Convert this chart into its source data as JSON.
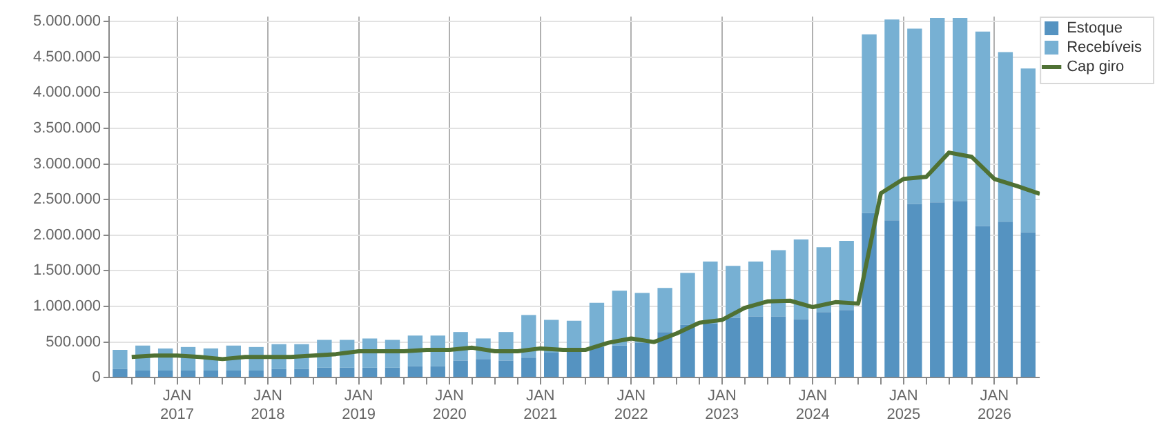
{
  "chart_data": {
    "type": "bar",
    "stacked": true,
    "grid": true,
    "legend": "right",
    "marker": "none",
    "x": [
      "2016-05-15",
      "2016-08-15",
      "2016-11-15",
      "2017-02-15",
      "2017-05-15",
      "2017-08-15",
      "2017-11-15",
      "2018-02-15",
      "2018-05-15",
      "2018-08-15",
      "2018-11-15",
      "2019-02-15",
      "2019-05-15",
      "2019-08-15",
      "2019-11-15",
      "2020-02-15",
      "2020-05-15",
      "2020-08-15",
      "2020-11-15",
      "2021-02-15",
      "2021-05-15",
      "2021-08-15",
      "2021-11-15",
      "2022-02-15",
      "2022-05-15",
      "2022-08-15",
      "2022-11-15",
      "2023-02-15",
      "2023-05-15",
      "2023-08-15",
      "2023-11-15",
      "2024-02-15",
      "2024-05-15",
      "2024-08-15",
      "2024-11-15",
      "2025-02-15",
      "2025-05-15",
      "2025-08-15",
      "2025-11-15",
      "2026-02-15",
      "2026-05-15"
    ],
    "series": [
      {
        "name": "Estoque",
        "color": "#5593c1",
        "values": [
          120000,
          100000,
          100000,
          100000,
          100000,
          100000,
          100000,
          120000,
          120000,
          140000,
          140000,
          140000,
          140000,
          160000,
          160000,
          240000,
          260000,
          240000,
          280000,
          350000,
          370000,
          430000,
          450000,
          490000,
          640000,
          740000,
          760000,
          840000,
          860000,
          860000,
          820000,
          920000,
          950000,
          2310000,
          2210000,
          2440000,
          2460000,
          2480000,
          2130000,
          2190000,
          2040000
        ]
      },
      {
        "name": "Recebíveis",
        "color": "#77b0d3",
        "values": [
          270000,
          350000,
          310000,
          330000,
          310000,
          350000,
          330000,
          350000,
          350000,
          390000,
          390000,
          410000,
          390000,
          430000,
          430000,
          400000,
          290000,
          400000,
          600000,
          460000,
          430000,
          620000,
          770000,
          700000,
          620000,
          730000,
          870000,
          730000,
          770000,
          930000,
          1120000,
          910000,
          970000,
          2510000,
          2820000,
          2460000,
          2590000,
          2570000,
          2730000,
          2380000,
          2300000
        ]
      },
      {
        "name": "Cap giro",
        "type": "line",
        "color": "#4f7134",
        "x": [
          "2016-07",
          "2016-10",
          "2017-01",
          "2017-04",
          "2017-07",
          "2017-10",
          "2018-01",
          "2018-04",
          "2018-07",
          "2018-10",
          "2019-01",
          "2019-04",
          "2019-07",
          "2019-10",
          "2020-01",
          "2020-04",
          "2020-07",
          "2020-10",
          "2021-01",
          "2021-04",
          "2021-07",
          "2021-10",
          "2022-01",
          "2022-04",
          "2022-07",
          "2022-10",
          "2023-01",
          "2023-04",
          "2023-07",
          "2023-10",
          "2024-01",
          "2024-04",
          "2024-07",
          "2024-10",
          "2025-01",
          "2025-04",
          "2025-07",
          "2025-10",
          "2026-01",
          "2026-04",
          "2026-07"
        ],
        "values": [
          290000,
          310000,
          310000,
          290000,
          260000,
          290000,
          290000,
          290000,
          310000,
          330000,
          370000,
          370000,
          370000,
          390000,
          390000,
          420000,
          370000,
          370000,
          410000,
          390000,
          390000,
          490000,
          550000,
          500000,
          620000,
          770000,
          810000,
          980000,
          1070000,
          1080000,
          990000,
          1060000,
          1040000,
          2590000,
          2790000,
          2820000,
          3160000,
          3100000,
          2790000,
          2690000,
          2580000
        ]
      }
    ],
    "xlim": [
      "2016-04",
      "2026-07"
    ],
    "xticks": [
      {
        "value": "2016-07",
        "label": null
      },
      {
        "value": "2016-10",
        "label": null
      },
      {
        "value": "2017-01",
        "label": "JAN\n2017"
      },
      {
        "value": "2017-04",
        "label": null
      },
      {
        "value": "2017-07",
        "label": null
      },
      {
        "value": "2017-10",
        "label": null
      },
      {
        "value": "2018-01",
        "label": "JAN\n2018"
      },
      {
        "value": "2018-04",
        "label": null
      },
      {
        "value": "2018-07",
        "label": null
      },
      {
        "value": "2018-10",
        "label": null
      },
      {
        "value": "2019-01",
        "label": "JAN\n2019"
      },
      {
        "value": "2019-04",
        "label": null
      },
      {
        "value": "2019-07",
        "label": null
      },
      {
        "value": "2019-10",
        "label": null
      },
      {
        "value": "2020-01",
        "label": "JAN\n2020"
      },
      {
        "value": "2020-04",
        "label": null
      },
      {
        "value": "2020-07",
        "label": null
      },
      {
        "value": "2020-10",
        "label": null
      },
      {
        "value": "2021-01",
        "label": "JAN\n2021"
      },
      {
        "value": "2021-04",
        "label": null
      },
      {
        "value": "2021-07",
        "label": null
      },
      {
        "value": "2021-10",
        "label": null
      },
      {
        "value": "2022-01",
        "label": "JAN\n2022"
      },
      {
        "value": "2022-04",
        "label": null
      },
      {
        "value": "2022-07",
        "label": null
      },
      {
        "value": "2022-10",
        "label": null
      },
      {
        "value": "2023-01",
        "label": "JAN\n2023"
      },
      {
        "value": "2023-04",
        "label": null
      },
      {
        "value": "2023-07",
        "label": null
      },
      {
        "value": "2023-10",
        "label": null
      },
      {
        "value": "2024-01",
        "label": "JAN\n2024"
      },
      {
        "value": "2024-04",
        "label": null
      },
      {
        "value": "2024-07",
        "label": null
      },
      {
        "value": "2024-10",
        "label": null
      },
      {
        "value": "2025-01",
        "label": "JAN\n2025"
      },
      {
        "value": "2025-04",
        "label": null
      },
      {
        "value": "2025-07",
        "label": null
      },
      {
        "value": "2025-10",
        "label": null
      },
      {
        "value": "2026-01",
        "label": "JAN\n2026"
      },
      {
        "value": "2026-04",
        "label": null
      }
    ],
    "ylim": [
      0,
      5070000
    ],
    "yticks": [
      {
        "value": 0,
        "label": "0"
      },
      {
        "value": 500000,
        "label": "500.000"
      },
      {
        "value": 1000000,
        "label": "1.000.000"
      },
      {
        "value": 1500000,
        "label": "1.500.000"
      },
      {
        "value": 2000000,
        "label": "2.000.000"
      },
      {
        "value": 2500000,
        "label": "2.500.000"
      },
      {
        "value": 3000000,
        "label": "3.000.000"
      },
      {
        "value": 3500000,
        "label": "3.500.000"
      },
      {
        "value": 4000000,
        "label": "4.000.000"
      },
      {
        "value": 4500000,
        "label": "4.500.000"
      },
      {
        "value": 5000000,
        "label": "5.000.000"
      }
    ]
  }
}
